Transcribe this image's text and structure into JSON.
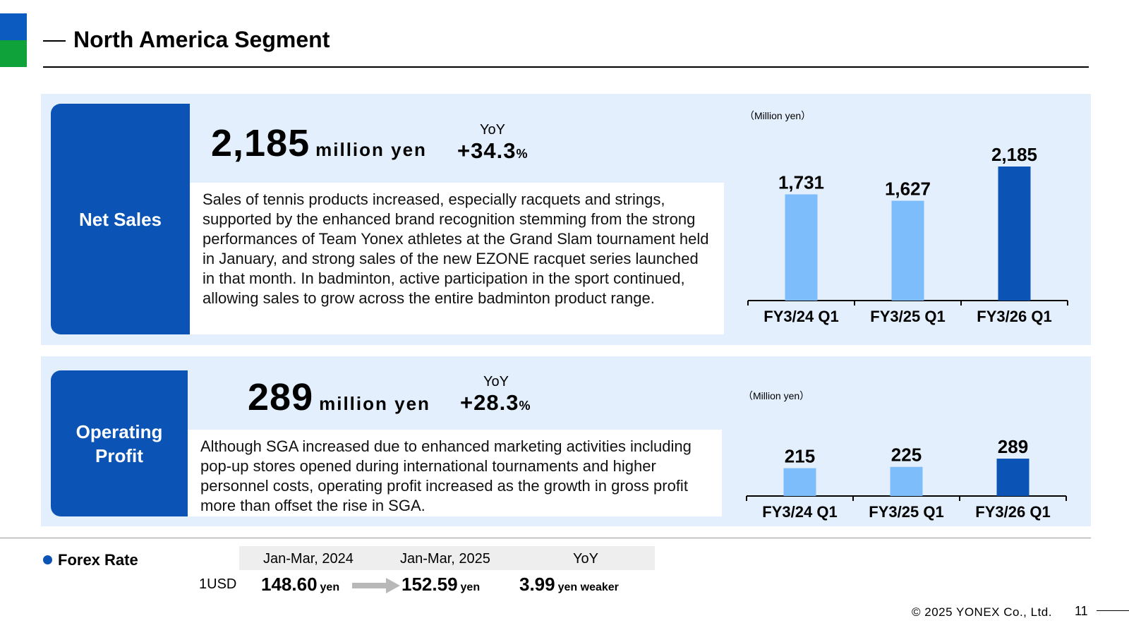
{
  "header": {
    "title": "North America Segment"
  },
  "net_sales": {
    "label": "Net Sales",
    "value": "2,185",
    "unit": "million yen",
    "yoy_label": "YoY",
    "yoy_value": "+34.3",
    "yoy_pct": "%",
    "description": "Sales of tennis products increased, especially racquets and strings, supported by the enhanced brand recognition stemming from the strong performances of Team Yonex athletes at the Grand Slam tournament held in January, and strong sales of the new EZONE racquet series launched in that month. In badminton, active participation in the sport continued, allowing sales to grow across the entire badminton product range."
  },
  "operating_profit": {
    "label_line1": "Operating",
    "label_line2": "Profit",
    "value": "289",
    "unit": "million yen",
    "yoy_label": "YoY",
    "yoy_value": "+28.3",
    "yoy_pct": "%",
    "description": "Although SGA increased due to enhanced marketing activities including pop-up stores opened during international tournaments and higher personnel costs, operating profit increased as the growth in gross profit more than offset the rise in SGA."
  },
  "chart_data": [
    {
      "type": "bar",
      "unit_label": "（Million yen）",
      "categories": [
        "FY3/24 Q1",
        "FY3/25 Q1",
        "FY3/26 Q1"
      ],
      "values": [
        1731,
        1627,
        2185
      ],
      "value_labels": [
        "1,731",
        "1,627",
        "2,185"
      ],
      "colors": [
        "#7dbdfb",
        "#7dbdfb",
        "#0b54b6"
      ],
      "ylim": [
        0,
        2185
      ]
    },
    {
      "type": "bar",
      "unit_label": "（Million yen）",
      "categories": [
        "FY3/24 Q1",
        "FY3/25 Q1",
        "FY3/26 Q1"
      ],
      "values": [
        215,
        225,
        289
      ],
      "value_labels": [
        "215",
        "225",
        "289"
      ],
      "colors": [
        "#7dbdfb",
        "#7dbdfb",
        "#0b54b6"
      ],
      "ylim": [
        0,
        289
      ]
    }
  ],
  "forex": {
    "title": "Forex Rate",
    "col1": "Jan-Mar, 2024",
    "col2": "Jan-Mar, 2025",
    "col3": "YoY",
    "pair": "1USD",
    "val1": "148.60",
    "val1_unit": "yen",
    "val2": "152.59",
    "val2_unit": "yen",
    "val3": "3.99",
    "val3_unit": "yen weaker"
  },
  "footer": {
    "copyright": "© 2025 YONEX Co., Ltd.",
    "page": "11"
  }
}
